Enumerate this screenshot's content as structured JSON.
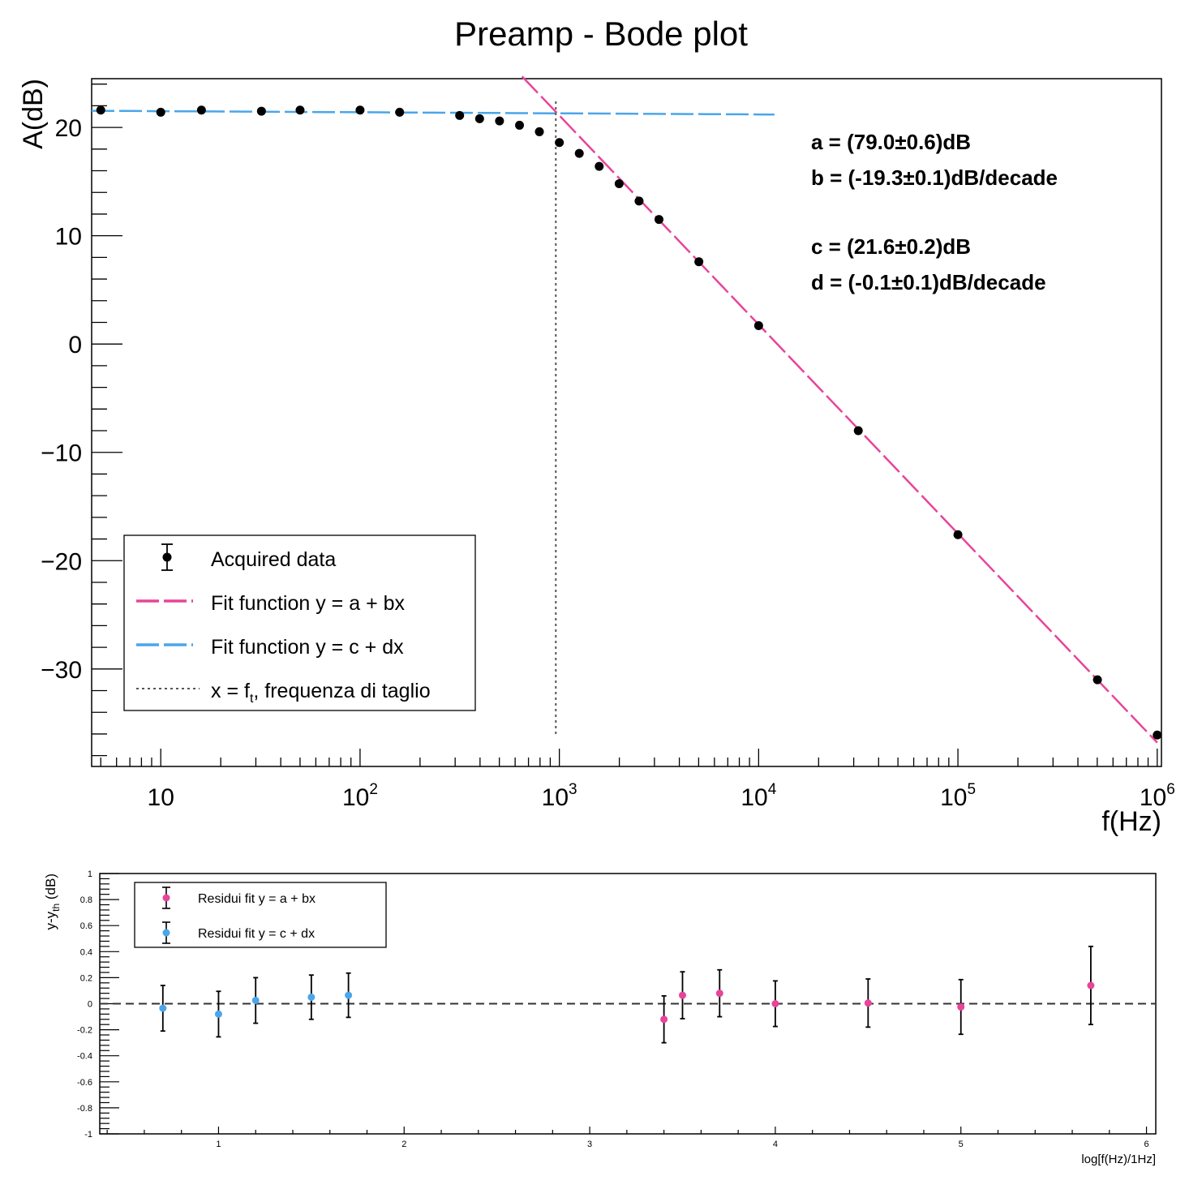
{
  "chart_data": [
    {
      "type": "scatter",
      "title": "Preamp - Bode plot",
      "xlabel": "f(Hz)",
      "ylabel": "A(dB)",
      "x_scale": "log",
      "xlim": [
        4.5,
        1050000
      ],
      "ylim": [
        -39,
        24.5
      ],
      "x_ticks": [
        {
          "value": 10,
          "base": "10",
          "exp": ""
        },
        {
          "value": 100,
          "base": "10",
          "exp": "2"
        },
        {
          "value": 1000,
          "base": "10",
          "exp": "3"
        },
        {
          "value": 10000,
          "base": "10",
          "exp": "4"
        },
        {
          "value": 100000,
          "base": "10",
          "exp": "5"
        },
        {
          "value": 1000000,
          "base": "10",
          "exp": "6"
        }
      ],
      "y_ticks": [
        {
          "value": 20,
          "label": "20"
        },
        {
          "value": 10,
          "label": "10"
        },
        {
          "value": 0,
          "label": "0"
        },
        {
          "value": -10,
          "label": "−10"
        },
        {
          "value": -20,
          "label": "−20"
        },
        {
          "value": -30,
          "label": "−30"
        }
      ],
      "grid": false,
      "cutoff_frequency": 960,
      "series": [
        {
          "name": "Acquired data",
          "color": "#000000",
          "points": [
            {
              "x": 5,
              "y": 21.6
            },
            {
              "x": 10,
              "y": 21.4
            },
            {
              "x": 16,
              "y": 21.6
            },
            {
              "x": 32,
              "y": 21.5
            },
            {
              "x": 50,
              "y": 21.6
            },
            {
              "x": 100,
              "y": 21.6
            },
            {
              "x": 158,
              "y": 21.4
            },
            {
              "x": 316,
              "y": 21.1
            },
            {
              "x": 398,
              "y": 20.8
            },
            {
              "x": 501,
              "y": 20.6
            },
            {
              "x": 631,
              "y": 20.2
            },
            {
              "x": 794,
              "y": 19.6
            },
            {
              "x": 1000,
              "y": 18.6
            },
            {
              "x": 1259,
              "y": 17.6
            },
            {
              "x": 1585,
              "y": 16.4
            },
            {
              "x": 1995,
              "y": 14.8
            },
            {
              "x": 2512,
              "y": 13.2
            },
            {
              "x": 3162,
              "y": 11.5
            },
            {
              "x": 5012,
              "y": 7.6
            },
            {
              "x": 10000,
              "y": 1.7
            },
            {
              "x": 31623,
              "y": -8.0
            },
            {
              "x": 100000,
              "y": -17.6
            },
            {
              "x": 501187,
              "y": -31.0
            },
            {
              "x": 1000000,
              "y": -36.1
            }
          ]
        },
        {
          "name": "Fit function y = a + bx",
          "color": "#e8449a",
          "intercept": 79.0,
          "slope": -19.3,
          "x_range": [
            650,
            1000000
          ]
        },
        {
          "name": "Fit function y = c + dx",
          "color": "#4aa6ea",
          "intercept": 21.6,
          "slope": -0.1,
          "x_range": [
            4.5,
            12000
          ]
        },
        {
          "name": "x = f",
          "sub": "t",
          "suffix": ", frequenza di taglio",
          "color": "#555555"
        }
      ],
      "annotations": [
        "a = (79.0±0.6)dB",
        "b = (-19.3±0.1)dB/decade",
        "c = (21.6±0.2)dB",
        "d = (-0.1±0.1)dB/decade"
      ]
    },
    {
      "type": "scatter",
      "xlabel": "log[f(Hz)/1Hz]",
      "ylabel": "y-y",
      "ylabel_sub": "th",
      "ylabel_suffix": " (dB)",
      "xlim": [
        0.36,
        6.05
      ],
      "ylim": [
        -1,
        1
      ],
      "x_ticks": [
        "1",
        "2",
        "3",
        "4",
        "5",
        "6"
      ],
      "y_ticks": [
        "1",
        "0.8",
        "0.6",
        "0.4",
        "0.2",
        "0",
        "-0.2",
        "-0.4",
        "-0.6",
        "-0.8",
        "-1"
      ],
      "series": [
        {
          "name": "Residui fit y = a + bx",
          "color": "#e8449a",
          "points": [
            {
              "x": 3.4,
              "y": -0.12,
              "err": 0.18
            },
            {
              "x": 3.5,
              "y": 0.065,
              "err": 0.18
            },
            {
              "x": 3.7,
              "y": 0.08,
              "err": 0.18
            },
            {
              "x": 4.0,
              "y": 0.0,
              "err": 0.175
            },
            {
              "x": 4.5,
              "y": 0.005,
              "err": 0.185
            },
            {
              "x": 5.0,
              "y": -0.025,
              "err": 0.21
            },
            {
              "x": 5.7,
              "y": 0.14,
              "err": 0.3
            }
          ]
        },
        {
          "name": "Residui fit y = c + dx",
          "color": "#4aa6ea",
          "points": [
            {
              "x": 0.7,
              "y": -0.035,
              "err": 0.175
            },
            {
              "x": 1.0,
              "y": -0.08,
              "err": 0.175
            },
            {
              "x": 1.2,
              "y": 0.025,
              "err": 0.175
            },
            {
              "x": 1.5,
              "y": 0.05,
              "err": 0.17
            },
            {
              "x": 1.7,
              "y": 0.065,
              "err": 0.17
            }
          ]
        }
      ]
    }
  ]
}
